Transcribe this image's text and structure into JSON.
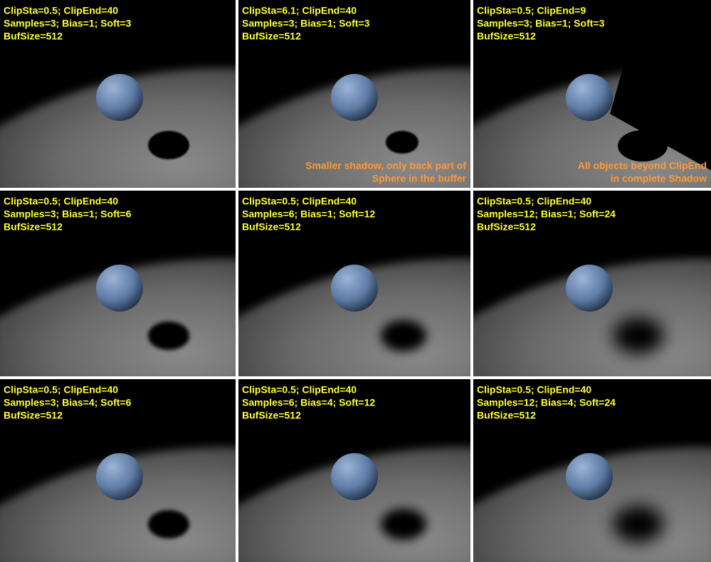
{
  "panels": [
    {
      "lines": [
        "ClipSta=0.5; ClipEnd=40",
        "Samples=3; Bias=1; Soft=3",
        "BufSize=512"
      ]
    },
    {
      "lines": [
        "ClipSta=6.1; ClipEnd=40",
        "Samples=3; Bias=1; Soft=3",
        "BufSize=512"
      ],
      "note": [
        "Smaller shadow, only back part of",
        "Sphere in the buffer"
      ]
    },
    {
      "lines": [
        "ClipSta=0.5; ClipEnd=9",
        "Samples=3; Bias=1; Soft=3",
        "BufSize=512"
      ],
      "note": [
        "All objects beyond ClipEnd",
        "in complete Shadow"
      ]
    },
    {
      "lines": [
        "ClipSta=0.5; ClipEnd=40",
        "Samples=3; Bias=1; Soft=6",
        "BufSize=512"
      ]
    },
    {
      "lines": [
        "ClipSta=0.5; ClipEnd=40",
        "Samples=6; Bias=1; Soft=12",
        "BufSize=512"
      ]
    },
    {
      "lines": [
        "ClipSta=0.5; ClipEnd=40",
        "Samples=12; Bias=1; Soft=24",
        "BufSize=512"
      ]
    },
    {
      "lines": [
        "ClipSta=0.5; ClipEnd=40",
        "Samples=3; Bias=4; Soft=6",
        "BufSize=512"
      ]
    },
    {
      "lines": [
        "ClipSta=0.5; ClipEnd=40",
        "Samples=6; Bias=4; Soft=12",
        "BufSize=512"
      ]
    },
    {
      "lines": [
        "ClipSta=0.5; ClipEnd=40",
        "Samples=12; Bias=4; Soft=24",
        "BufSize=512"
      ]
    }
  ]
}
